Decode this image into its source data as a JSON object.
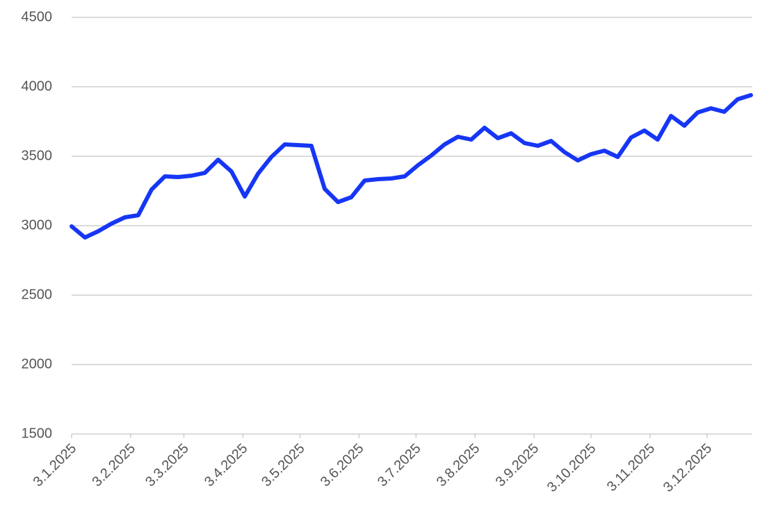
{
  "chart_data": {
    "type": "line",
    "x": [
      "2025-01-03",
      "2025-01-10",
      "2025-01-17",
      "2025-01-24",
      "2025-01-31",
      "2025-02-07",
      "2025-02-14",
      "2025-02-21",
      "2025-02-28",
      "2025-03-07",
      "2025-03-14",
      "2025-03-21",
      "2025-03-28",
      "2025-04-04",
      "2025-04-11",
      "2025-04-18",
      "2025-04-25",
      "2025-05-02",
      "2025-05-09",
      "2025-05-16",
      "2025-05-23",
      "2025-05-30",
      "2025-06-06",
      "2025-06-13",
      "2025-06-20",
      "2025-06-27",
      "2025-07-04",
      "2025-07-11",
      "2025-07-18",
      "2025-07-25",
      "2025-08-01",
      "2025-08-08",
      "2025-08-15",
      "2025-08-22",
      "2025-08-29",
      "2025-09-05",
      "2025-09-12",
      "2025-09-19",
      "2025-09-26",
      "2025-10-03",
      "2025-10-10",
      "2025-10-17",
      "2025-10-24",
      "2025-10-31",
      "2025-11-07",
      "2025-11-14",
      "2025-11-21",
      "2025-11-28",
      "2025-12-05",
      "2025-12-12",
      "2025-12-19",
      "2025-12-26"
    ],
    "series": [
      {
        "color": "#1636f5",
        "values": [
          2995,
          2915,
          2960,
          3015,
          3060,
          3075,
          3260,
          3355,
          3350,
          3360,
          3380,
          3475,
          3390,
          3210,
          3375,
          3495,
          3585,
          3580,
          3575,
          3265,
          3170,
          3205,
          3325,
          3335,
          3340,
          3355,
          3435,
          3505,
          3585,
          3640,
          3620,
          3705,
          3630,
          3665,
          3595,
          3575,
          3610,
          3530,
          3470,
          3515,
          3540,
          3495,
          3635,
          3685,
          3620,
          3790,
          3720,
          3815,
          3845,
          3820,
          3910,
          3940
        ]
      }
    ],
    "xlim": [
      "2025-01-03",
      "2025-12-26"
    ],
    "xticks": [
      {
        "value": "2025-01-03",
        "label": "3.1.2025"
      },
      {
        "value": "2025-02-03",
        "label": "3.2.2025"
      },
      {
        "value": "2025-03-03",
        "label": "3.3.2025"
      },
      {
        "value": "2025-04-03",
        "label": "3.4.2025"
      },
      {
        "value": "2025-05-03",
        "label": "3.5.2025"
      },
      {
        "value": "2025-06-03",
        "label": "3.6.2025"
      },
      {
        "value": "2025-07-03",
        "label": "3.7.2025"
      },
      {
        "value": "2025-08-03",
        "label": "3.8.2025"
      },
      {
        "value": "2025-09-03",
        "label": "3.9.2025"
      },
      {
        "value": "2025-10-03",
        "label": "3.10.2025"
      },
      {
        "value": "2025-11-03",
        "label": "3.11.2025"
      },
      {
        "value": "2025-12-03",
        "label": "3.12.2025"
      }
    ],
    "ylim": [
      1500,
      4500
    ],
    "yticks": [
      1500,
      2000,
      2500,
      3000,
      3500,
      4000,
      4500
    ],
    "grid": true
  }
}
